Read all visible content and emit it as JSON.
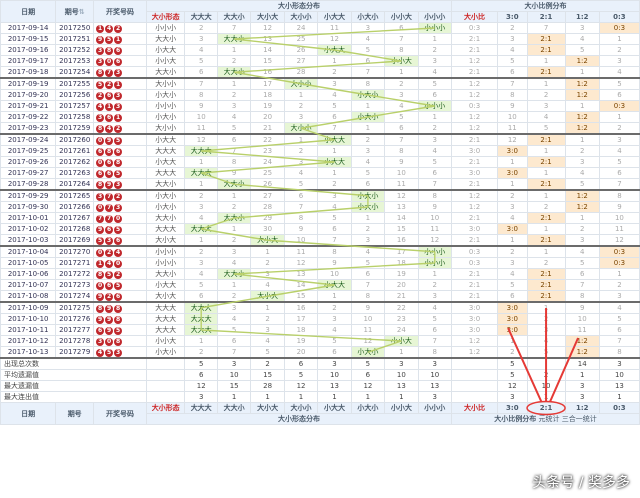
{
  "header": {
    "date": "日期",
    "issue": "期号",
    "sort_icon": "sort-icon",
    "balls": "开奖号码",
    "shape_dist": "大小形态分布",
    "ratio_dist": "大小比例分布"
  },
  "shape_cols": [
    "大小形态",
    "大大大",
    "大大小",
    "大小大",
    "大小小",
    "小大大",
    "小大小",
    "小小大",
    "小小小"
  ],
  "ratio_cols": [
    "大小比",
    "3:0",
    "2:1",
    "1:2",
    "0:3"
  ],
  "rows": [
    {
      "date": "2017-09-14",
      "issue": "2017250",
      "balls": [
        "1",
        "4",
        "2"
      ],
      "shape": "小小小",
      "sv": [
        "2",
        "7",
        "12",
        "24",
        "11",
        "3",
        "6",
        ""
      ],
      "ratio": "0:3",
      "rv": [
        "",
        "2",
        "7",
        "3",
        ""
      ],
      "group_end": false
    },
    {
      "date": "2017-09-15",
      "issue": "2017251",
      "balls": [
        "9",
        "5",
        "1"
      ],
      "shape": "大大小",
      "sv": [
        "3",
        "",
        "13",
        "25",
        "12",
        "4",
        "7",
        "1"
      ],
      "ratio": "2:1",
      "rv": [
        "",
        "3",
        "",
        "4",
        "1"
      ],
      "group_end": false
    },
    {
      "date": "2017-09-16",
      "issue": "2017252",
      "balls": [
        "3",
        "8",
        "6"
      ],
      "shape": "小大大",
      "sv": [
        "4",
        "1",
        "14",
        "26",
        "",
        "5",
        "8",
        "2"
      ],
      "ratio": "2:1",
      "rv": [
        "",
        "4",
        "",
        "5",
        "2"
      ],
      "group_end": false
    },
    {
      "date": "2017-09-17",
      "issue": "2017253",
      "balls": [
        "3",
        "0",
        "6"
      ],
      "shape": "小小大",
      "sv": [
        "5",
        "2",
        "15",
        "27",
        "1",
        "6",
        "",
        "3"
      ],
      "ratio": "1:2",
      "rv": [
        "",
        "5",
        "1",
        "",
        "3"
      ],
      "group_end": false
    },
    {
      "date": "2017-09-18",
      "issue": "2017254",
      "balls": [
        "8",
        "7",
        "3"
      ],
      "shape": "大大小",
      "sv": [
        "6",
        "",
        "16",
        "28",
        "2",
        "7",
        "1",
        "4"
      ],
      "ratio": "2:1",
      "rv": [
        "",
        "6",
        "",
        "1",
        "4"
      ],
      "group_end": true
    },
    {
      "date": "2017-09-19",
      "issue": "2017255",
      "balls": [
        "5",
        "2",
        "1"
      ],
      "shape": "大小小",
      "sv": [
        "7",
        "1",
        "17",
        "",
        "3",
        "8",
        "2",
        "5"
      ],
      "ratio": "1:2",
      "rv": [
        "",
        "7",
        "1",
        "",
        "5"
      ],
      "group_end": false
    },
    {
      "date": "2017-09-20",
      "issue": "2017256",
      "balls": [
        "2",
        "6",
        "3"
      ],
      "shape": "小大小",
      "sv": [
        "8",
        "2",
        "18",
        "1",
        "4",
        "",
        "3",
        "6"
      ],
      "ratio": "1:2",
      "rv": [
        "",
        "8",
        "2",
        "",
        "6"
      ],
      "group_end": false
    },
    {
      "date": "2017-09-21",
      "issue": "2017257",
      "balls": [
        "4",
        "1",
        "3"
      ],
      "shape": "小小小",
      "sv": [
        "9",
        "3",
        "19",
        "2",
        "5",
        "1",
        "4",
        ""
      ],
      "ratio": "0:3",
      "rv": [
        "",
        "9",
        "3",
        "1",
        ""
      ],
      "group_end": false
    },
    {
      "date": "2017-09-22",
      "issue": "2017258",
      "balls": [
        "3",
        "6",
        "1"
      ],
      "shape": "小大小",
      "sv": [
        "10",
        "4",
        "20",
        "3",
        "6",
        "",
        "5",
        "1"
      ],
      "ratio": "1:2",
      "rv": [
        "",
        "10",
        "4",
        "",
        "1"
      ],
      "group_end": false
    },
    {
      "date": "2017-09-23",
      "issue": "2017259",
      "balls": [
        "8",
        "4",
        "2"
      ],
      "shape": "大小小",
      "sv": [
        "11",
        "5",
        "21",
        "",
        "7",
        "1",
        "6",
        "2"
      ],
      "ratio": "1:2",
      "rv": [
        "",
        "11",
        "5",
        "",
        "2"
      ],
      "group_end": true
    },
    {
      "date": "2017-09-24",
      "issue": "2017260",
      "balls": [
        "0",
        "9",
        "5"
      ],
      "shape": "小大大",
      "sv": [
        "12",
        "6",
        "22",
        "1",
        "",
        "2",
        "7",
        "3"
      ],
      "ratio": "2:1",
      "rv": [
        "",
        "12",
        "",
        "1",
        "3"
      ],
      "group_end": false
    },
    {
      "date": "2017-09-25",
      "issue": "2017261",
      "balls": [
        "6",
        "8",
        "6"
      ],
      "shape": "大大大",
      "sv": [
        "",
        "7",
        "23",
        "2",
        "1",
        "3",
        "8",
        "4"
      ],
      "ratio": "3:0",
      "rv": [
        "",
        "",
        "1",
        "2",
        "4"
      ],
      "group_end": false
    },
    {
      "date": "2017-09-26",
      "issue": "2017262",
      "balls": [
        "0",
        "6",
        "8"
      ],
      "shape": "小大大",
      "sv": [
        "1",
        "8",
        "24",
        "3",
        "",
        "4",
        "9",
        "5"
      ],
      "ratio": "2:1",
      "rv": [
        "",
        "1",
        "",
        "3",
        "5"
      ],
      "group_end": false
    },
    {
      "date": "2017-09-27",
      "issue": "2017263",
      "balls": [
        "6",
        "6",
        "5"
      ],
      "shape": "大大大",
      "sv": [
        "",
        "9",
        "25",
        "4",
        "1",
        "5",
        "10",
        "6"
      ],
      "ratio": "3:0",
      "rv": [
        "",
        "",
        "1",
        "4",
        "6"
      ],
      "group_end": false
    },
    {
      "date": "2017-09-28",
      "issue": "2017264",
      "balls": [
        "8",
        "9",
        "3"
      ],
      "shape": "大大小",
      "sv": [
        "1",
        "",
        "26",
        "5",
        "2",
        "6",
        "11",
        "7"
      ],
      "ratio": "2:1",
      "rv": [
        "",
        "1",
        "",
        "5",
        "7"
      ],
      "group_end": true
    },
    {
      "date": "2017-09-29",
      "issue": "2017265",
      "balls": [
        "3",
        "7",
        "2"
      ],
      "shape": "小大小",
      "sv": [
        "2",
        "1",
        "27",
        "6",
        "3",
        "",
        "12",
        "8"
      ],
      "ratio": "1:2",
      "rv": [
        "",
        "2",
        "1",
        "",
        "8"
      ],
      "group_end": false
    },
    {
      "date": "2017-09-30",
      "issue": "2017266",
      "balls": [
        "0",
        "7",
        "3"
      ],
      "shape": "小大小",
      "sv": [
        "3",
        "2",
        "28",
        "7",
        "4",
        "",
        "13",
        "9"
      ],
      "ratio": "1:2",
      "rv": [
        "",
        "3",
        "2",
        "",
        "9"
      ],
      "group_end": false
    },
    {
      "date": "2017-10-01",
      "issue": "2017267",
      "balls": [
        "7",
        "7",
        "0"
      ],
      "shape": "大大小",
      "sv": [
        "4",
        "",
        "29",
        "8",
        "5",
        "1",
        "14",
        "10"
      ],
      "ratio": "2:1",
      "rv": [
        "",
        "4",
        "",
        "1",
        "10"
      ],
      "group_end": false
    },
    {
      "date": "2017-10-02",
      "issue": "2017268",
      "balls": [
        "9",
        "6",
        "5"
      ],
      "shape": "大大大",
      "sv": [
        "",
        "1",
        "30",
        "9",
        "6",
        "2",
        "15",
        "11"
      ],
      "ratio": "3:0",
      "rv": [
        "",
        "",
        "1",
        "2",
        "11"
      ],
      "group_end": false
    },
    {
      "date": "2017-10-03",
      "issue": "2017269",
      "balls": [
        "5",
        "3",
        "6"
      ],
      "shape": "大小大",
      "sv": [
        "1",
        "2",
        "",
        "10",
        "7",
        "3",
        "16",
        "12"
      ],
      "ratio": "2:1",
      "rv": [
        "",
        "1",
        "",
        "3",
        "12"
      ],
      "group_end": true
    },
    {
      "date": "2017-10-04",
      "issue": "2017270",
      "balls": [
        "0",
        "2",
        "4"
      ],
      "shape": "小小小",
      "sv": [
        "2",
        "3",
        "1",
        "11",
        "8",
        "4",
        "17",
        ""
      ],
      "ratio": "0:3",
      "rv": [
        "",
        "2",
        "1",
        "4",
        ""
      ],
      "group_end": false
    },
    {
      "date": "2017-10-05",
      "issue": "2017271",
      "balls": [
        "1",
        "4",
        "0"
      ],
      "shape": "小小小",
      "sv": [
        "3",
        "4",
        "2",
        "12",
        "9",
        "5",
        "18",
        ""
      ],
      "ratio": "0:3",
      "rv": [
        "",
        "3",
        "2",
        "5",
        ""
      ],
      "group_end": false
    },
    {
      "date": "2017-10-06",
      "issue": "2017272",
      "balls": [
        "8",
        "5",
        "2"
      ],
      "shape": "大大小",
      "sv": [
        "4",
        "",
        "3",
        "13",
        "10",
        "6",
        "19",
        "1"
      ],
      "ratio": "2:1",
      "rv": [
        "",
        "4",
        "",
        "6",
        "1"
      ],
      "group_end": false
    },
    {
      "date": "2017-10-07",
      "issue": "2017273",
      "balls": [
        "0",
        "6",
        "5"
      ],
      "shape": "小大大",
      "sv": [
        "5",
        "1",
        "4",
        "14",
        "",
        "7",
        "20",
        "2"
      ],
      "ratio": "2:1",
      "rv": [
        "",
        "5",
        "",
        "7",
        "2"
      ],
      "group_end": false
    },
    {
      "date": "2017-10-08",
      "issue": "2017274",
      "balls": [
        "9",
        "2",
        "6"
      ],
      "shape": "大小大",
      "sv": [
        "6",
        "2",
        "",
        "15",
        "1",
        "8",
        "21",
        "3"
      ],
      "ratio": "2:1",
      "rv": [
        "",
        "6",
        "",
        "8",
        "3"
      ],
      "group_end": true
    },
    {
      "date": "2017-10-09",
      "issue": "2017275",
      "balls": [
        "8",
        "9",
        "8"
      ],
      "shape": "大大大",
      "sv": [
        "",
        "3",
        "1",
        "16",
        "2",
        "9",
        "22",
        "4"
      ],
      "ratio": "3:0",
      "rv": [
        "",
        "",
        "1",
        "9",
        "4"
      ],
      "group_end": false
    },
    {
      "date": "2017-10-10",
      "issue": "2017276",
      "balls": [
        "9",
        "9",
        "8"
      ],
      "shape": "大大大",
      "sv": [
        "",
        "4",
        "2",
        "17",
        "3",
        "10",
        "23",
        "5"
      ],
      "ratio": "3:0",
      "rv": [
        "",
        "",
        "2",
        "10",
        "5"
      ],
      "group_end": false
    },
    {
      "date": "2017-10-11",
      "issue": "2017277",
      "balls": [
        "6",
        "9",
        "5"
      ],
      "shape": "大大大",
      "sv": [
        "",
        "5",
        "3",
        "18",
        "4",
        "11",
        "24",
        "6"
      ],
      "ratio": "3:0",
      "rv": [
        "",
        "",
        "3",
        "11",
        "6"
      ],
      "group_end": false
    },
    {
      "date": "2017-10-12",
      "issue": "2017278",
      "balls": [
        "3",
        "0",
        "8"
      ],
      "shape": "小小大",
      "sv": [
        "1",
        "6",
        "4",
        "19",
        "5",
        "12",
        "",
        "7"
      ],
      "ratio": "1:2",
      "rv": [
        "",
        "1",
        "4",
        "",
        "7"
      ],
      "group_end": false
    },
    {
      "date": "2017-10-13",
      "issue": "2017279",
      "balls": [
        "4",
        "5",
        "3"
      ],
      "shape": "小大小",
      "sv": [
        "2",
        "7",
        "5",
        "20",
        "6",
        "",
        "1",
        "8"
      ],
      "ratio": "1:2",
      "rv": [
        "",
        "2",
        "5",
        "",
        "8"
      ],
      "group_end": true
    }
  ],
  "stats": [
    {
      "label": "出现总次数",
      "sv": [
        "5",
        "3",
        "2",
        "6",
        "3",
        "5",
        "3",
        "3"
      ],
      "rv": [
        "",
        "5",
        "",
        "14",
        "3"
      ]
    },
    {
      "label": "平均遗漏值",
      "sv": [
        "6",
        "10",
        "15",
        "5",
        "10",
        "6",
        "10",
        "10"
      ],
      "rv": [
        "",
        "5",
        "2",
        "1",
        "10"
      ]
    },
    {
      "label": "最大遗漏值",
      "sv": [
        "12",
        "15",
        "28",
        "12",
        "13",
        "12",
        "13",
        "13"
      ],
      "rv": [
        "",
        "12",
        "10",
        "3",
        "13"
      ]
    },
    {
      "label": "最大连出值",
      "sv": [
        "3",
        "1",
        "1",
        "1",
        "1",
        "1",
        "1",
        "3"
      ],
      "rv": [
        "",
        "3",
        "1",
        "3",
        "1"
      ]
    }
  ],
  "footer": {
    "date": "日期",
    "issue": "期号",
    "balls": "开奖号码",
    "shape_dist": "大小形态分布",
    "ratio_dist": "大小比例分布",
    "hint_a": "元统计",
    "hint_b": "三合一统计"
  },
  "watermark": "头条号 / 奖多多",
  "colors": {
    "ball": "#c0282d",
    "line": "#b9d06a",
    "highlight": "#e53935"
  }
}
